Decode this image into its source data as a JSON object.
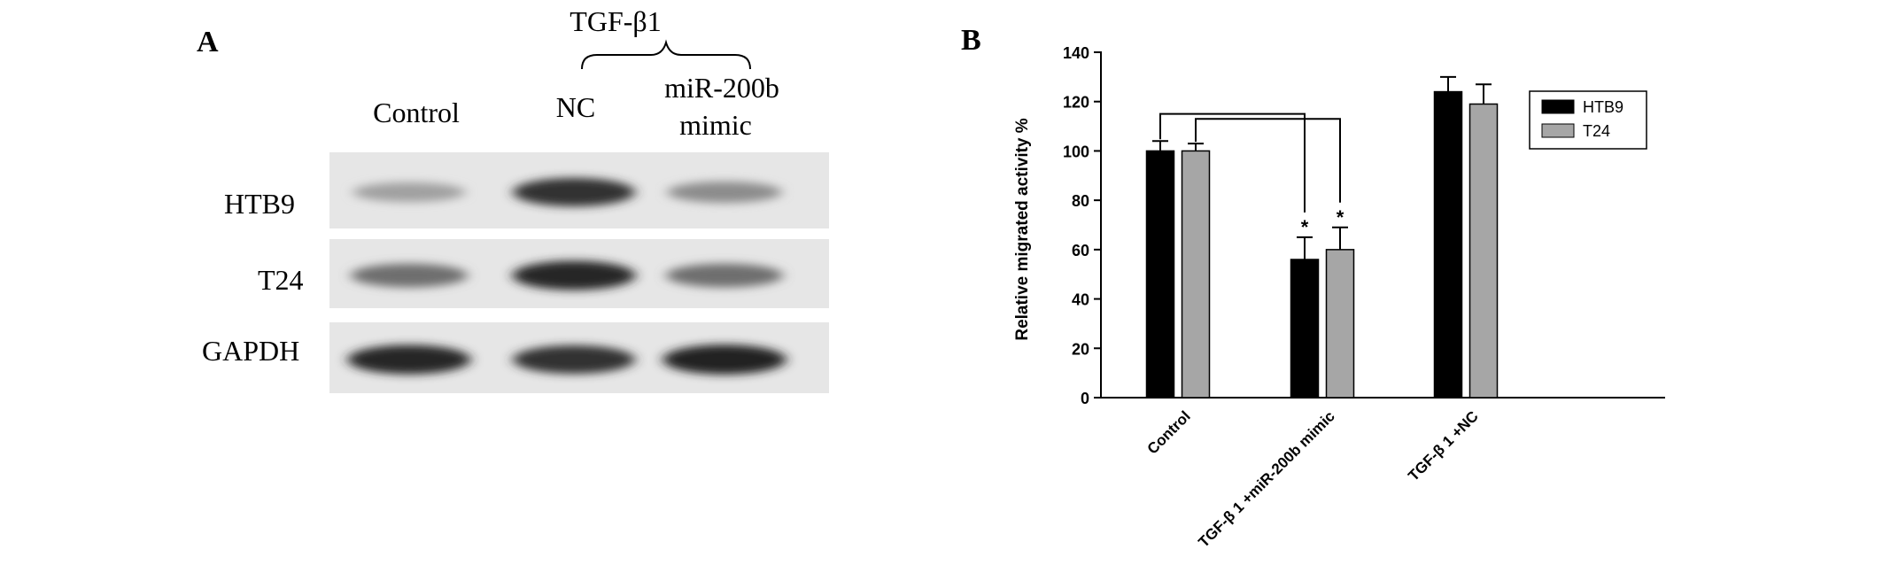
{
  "panel_a": {
    "label": "A",
    "group_label": "TGF-β1",
    "lane_labels": [
      "Control",
      "NC",
      "miR-200b",
      "mimic"
    ],
    "row_labels": [
      "HTB9",
      "T24",
      "GAPDH"
    ],
    "band_intensity": {
      "HTB9": [
        0.35,
        0.9,
        0.45
      ],
      "T24": [
        0.6,
        0.95,
        0.6
      ],
      "GAPDH": [
        0.95,
        0.9,
        0.98
      ]
    }
  },
  "panel_b": {
    "label": "B"
  },
  "chart_data": {
    "type": "bar",
    "title": "",
    "xlabel": "",
    "ylabel": "Relative migrated activity %",
    "categories": [
      "Control",
      "TGF-β 1 +miR-200b mimic",
      "TGF-β 1 +NC"
    ],
    "series": [
      {
        "name": "HTB9",
        "values": [
          100,
          56,
          124
        ],
        "errors": [
          4,
          9,
          6
        ],
        "color": "#000000"
      },
      {
        "name": "T24",
        "values": [
          100,
          60,
          119
        ],
        "errors": [
          3,
          9,
          8
        ],
        "color": "#a6a6a6"
      }
    ],
    "ylim": [
      0,
      140
    ],
    "yticks": [
      0,
      20,
      40,
      60,
      80,
      100,
      120,
      140
    ],
    "significance": [
      "",
      "*",
      ""
    ],
    "legend_position": "top-right",
    "grid": false
  }
}
